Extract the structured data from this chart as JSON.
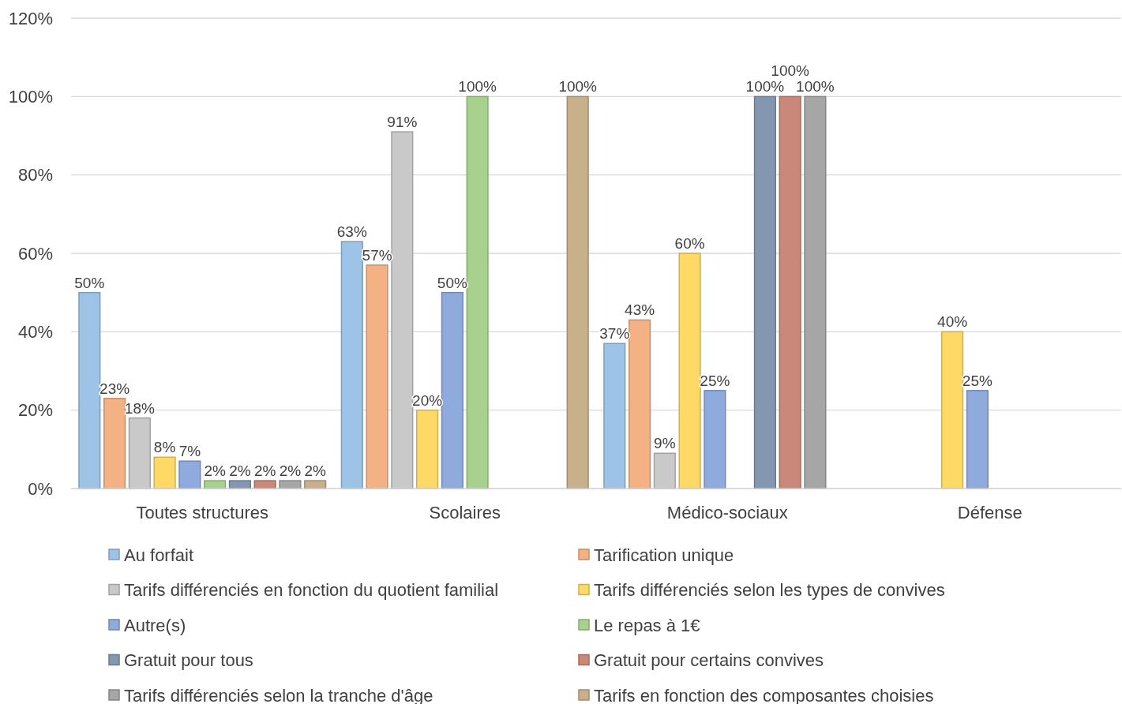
{
  "chart_data": {
    "type": "bar",
    "categories": [
      "Toutes structures",
      "Scolaires",
      "Médico-sociaux",
      "Défense"
    ],
    "series": [
      {
        "name": "Au forfait",
        "color": "#9dc3e6",
        "values": [
          50,
          63,
          37,
          null
        ],
        "value_labels": [
          "50%",
          "63%",
          "37%",
          null
        ]
      },
      {
        "name": "Tarification unique",
        "color": "#f4b183",
        "values": [
          23,
          57,
          43,
          null
        ],
        "value_labels": [
          "23%",
          "57%",
          "43%",
          null
        ]
      },
      {
        "name": "Tarifs différenciés en fonction du quotient familial",
        "color": "#c9c9c9",
        "values": [
          18,
          91,
          9,
          null
        ],
        "value_labels": [
          "18%",
          "91%",
          "9%",
          null
        ]
      },
      {
        "name": "Tarifs différenciés selon les types de convives",
        "color": "#ffd966",
        "values": [
          8,
          20,
          60,
          40
        ],
        "value_labels": [
          "8%",
          "20%",
          "60%",
          "40%"
        ]
      },
      {
        "name": "Autre(s)",
        "color": "#8faadc",
        "values": [
          7,
          50,
          25,
          25
        ],
        "value_labels": [
          "7%",
          "50%",
          "25%",
          "25%"
        ]
      },
      {
        "name": "Le repas à 1€",
        "color": "#a9d18e",
        "values": [
          2,
          100,
          null,
          null
        ],
        "value_labels": [
          "2%",
          "100%",
          null,
          null
        ]
      },
      {
        "name": "Gratuit pour tous",
        "color": "#8497b0",
        "values": [
          2,
          null,
          100,
          null
        ],
        "value_labels": [
          "2%",
          null,
          "100%",
          null
        ]
      },
      {
        "name": "Gratuit pour certains convives",
        "color": "#c9887a",
        "values": [
          2,
          null,
          100,
          null
        ],
        "value_labels": [
          "2%",
          null,
          "100%",
          null
        ]
      },
      {
        "name": "Tarifs différenciés selon la tranche d'âge",
        "color": "#a6a6a6",
        "values": [
          2,
          null,
          100,
          null
        ],
        "value_labels": [
          "2%",
          null,
          "100%",
          null
        ]
      },
      {
        "name": "Tarifs en fonction des composantes choisies",
        "color": "#c8b08a",
        "values": [
          2,
          100,
          null,
          null
        ],
        "value_labels": [
          "2%",
          "100%",
          null,
          null
        ]
      }
    ],
    "ylim": [
      0,
      120
    ],
    "yticks": [
      {
        "value": 0,
        "label": "0%"
      },
      {
        "value": 20,
        "label": "20%"
      },
      {
        "value": 40,
        "label": "40%"
      },
      {
        "value": 60,
        "label": "60%"
      },
      {
        "value": 80,
        "label": "80%"
      },
      {
        "value": 100,
        "label": "100%"
      },
      {
        "value": 120,
        "label": "120%"
      }
    ],
    "grid": "y",
    "legend": "bottom"
  }
}
